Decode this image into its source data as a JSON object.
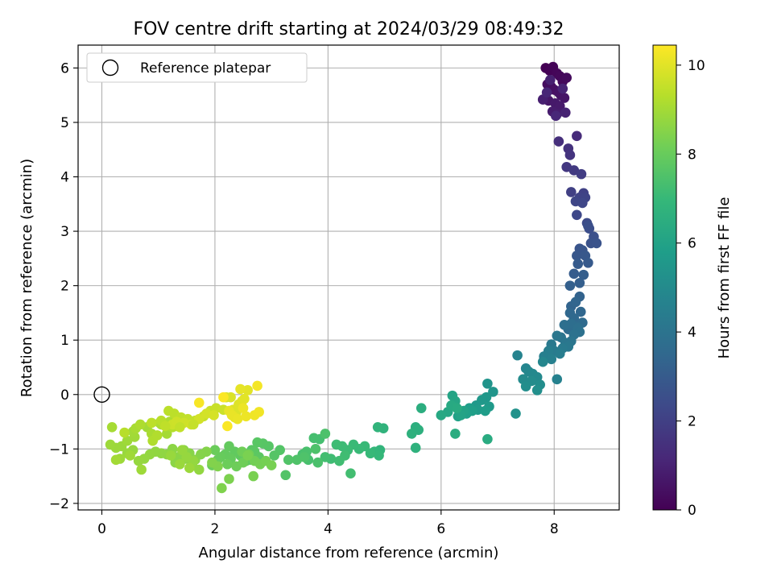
{
  "chart_data": {
    "type": "scatter",
    "title": "FOV centre drift starting at 2024/03/29 08:49:32",
    "xlabel": "Angular distance from reference (arcmin)",
    "ylabel": "Rotation from reference (arcmin)",
    "xlim": [
      -0.42,
      9.15
    ],
    "ylim": [
      -2.12,
      6.42
    ],
    "x_ticks": [
      0,
      2,
      4,
      6,
      8
    ],
    "y_ticks": [
      -2,
      -1,
      0,
      1,
      2,
      3,
      4,
      5,
      6
    ],
    "grid": true,
    "legend": {
      "placement": "top-left",
      "label": "Reference platepar"
    },
    "reference_point": {
      "x": 0,
      "y": 0
    },
    "colorbar": {
      "label": "Hours from first FF file",
      "range": [
        0,
        10.45
      ],
      "ticks": [
        0,
        2,
        4,
        6,
        8,
        10
      ],
      "colormap": "viridis",
      "colormap_stops": [
        "#440154",
        "#482878",
        "#3e4989",
        "#31688e",
        "#26828e",
        "#1f9e89",
        "#35b779",
        "#6ece58",
        "#b5de2b",
        "#fde725"
      ]
    },
    "point_color_mapping": "hours",
    "series": [
      {
        "x": [
          7.85,
          7.92,
          7.98,
          8.05,
          8.1,
          8.15,
          8.22,
          7.88,
          7.95,
          8.0,
          8.08,
          8.12,
          8.18,
          7.9,
          8.02,
          8.1,
          7.97,
          8.05,
          7.8,
          7.93,
          8.2,
          8.15,
          7.87,
          8.03
        ],
        "y": [
          6.0,
          5.95,
          6.02,
          5.9,
          5.85,
          5.75,
          5.82,
          5.7,
          5.65,
          5.6,
          5.55,
          5.5,
          5.45,
          5.4,
          5.35,
          5.3,
          5.2,
          5.15,
          5.42,
          5.78,
          5.18,
          5.62,
          5.55,
          5.12
        ],
        "hours": [
          0.0,
          0.05,
          0.1,
          0.15,
          0.2,
          0.25,
          0.3,
          0.35,
          0.4,
          0.45,
          0.5,
          0.55,
          0.6,
          0.65,
          0.7,
          0.75,
          0.8,
          0.85,
          0.9,
          0.95,
          1.0,
          1.05,
          1.1,
          1.15
        ]
      },
      {
        "x": [
          8.4,
          8.08,
          8.25,
          8.28,
          8.22,
          8.35,
          8.48,
          8.3,
          8.52,
          8.45,
          8.55,
          8.38,
          8.5,
          8.4,
          8.58,
          8.62,
          8.6,
          8.7,
          8.65,
          8.75,
          8.45,
          8.5,
          8.4,
          8.55,
          8.6,
          8.42,
          8.35,
          8.52,
          8.45,
          8.28
        ],
        "y": [
          4.75,
          4.65,
          4.52,
          4.4,
          4.18,
          4.12,
          4.05,
          3.72,
          3.7,
          3.62,
          3.62,
          3.55,
          3.52,
          3.3,
          3.15,
          3.05,
          3.1,
          2.9,
          2.78,
          2.78,
          2.68,
          2.65,
          2.55,
          2.55,
          2.42,
          2.4,
          2.22,
          2.2,
          2.05,
          2.0
        ],
        "hours": [
          1.3,
          1.4,
          1.5,
          1.6,
          1.7,
          1.8,
          1.9,
          2.0,
          2.05,
          2.1,
          2.15,
          2.2,
          2.25,
          2.3,
          2.4,
          2.5,
          2.55,
          2.6,
          2.65,
          2.7,
          2.75,
          2.8,
          2.85,
          2.9,
          2.95,
          3.0,
          3.05,
          3.1,
          3.15,
          3.2
        ]
      },
      {
        "x": [
          8.45,
          8.3,
          8.38,
          8.47,
          8.28,
          8.35,
          8.5,
          8.25,
          8.4,
          8.3,
          8.18,
          8.42,
          8.45,
          8.35,
          8.12,
          8.3,
          8.2,
          8.05,
          8.25,
          7.95,
          8.15,
          8.0,
          8.1,
          7.9,
          7.82,
          7.95,
          8.05
        ],
        "y": [
          1.8,
          1.62,
          1.7,
          1.52,
          1.5,
          1.4,
          1.32,
          1.2,
          1.25,
          1.3,
          1.28,
          1.22,
          1.15,
          1.1,
          1.05,
          0.98,
          0.95,
          1.08,
          0.88,
          0.92,
          0.85,
          0.8,
          0.75,
          0.8,
          0.7,
          0.65,
          0.28
        ],
        "hours": [
          3.3,
          3.35,
          3.4,
          3.45,
          3.5,
          3.55,
          3.6,
          3.65,
          3.7,
          3.75,
          3.8,
          3.85,
          3.9,
          3.95,
          4.0,
          4.05,
          4.1,
          4.15,
          4.2,
          4.25,
          4.3,
          4.35,
          4.4,
          4.45,
          4.5,
          4.55,
          4.6
        ]
      },
      {
        "x": [
          7.35,
          7.5,
          7.8,
          7.55,
          7.62,
          7.7,
          7.45,
          7.6,
          7.75,
          7.5,
          7.7,
          7.32,
          6.82,
          6.92,
          6.8,
          6.72,
          6.62,
          6.85,
          6.65,
          6.78,
          6.5,
          6.55,
          6.45,
          6.3,
          6.4,
          6.35,
          6.2,
          6.25,
          6.12,
          6.0,
          6.18,
          6.28,
          6.82,
          6.25
        ],
        "y": [
          0.72,
          0.48,
          0.6,
          0.42,
          0.38,
          0.32,
          0.28,
          0.25,
          0.18,
          0.15,
          0.08,
          -0.35,
          0.2,
          0.05,
          -0.05,
          -0.1,
          -0.2,
          -0.22,
          -0.28,
          -0.3,
          -0.25,
          -0.3,
          -0.35,
          -0.4,
          -0.3,
          -0.38,
          -0.02,
          -0.12,
          -0.32,
          -0.38,
          -0.2,
          -0.25,
          -0.82,
          -0.72
        ],
        "hours": [
          4.7,
          4.75,
          4.8,
          4.85,
          4.9,
          4.95,
          5.0,
          5.05,
          5.1,
          5.15,
          5.2,
          5.3,
          5.4,
          5.45,
          5.5,
          5.55,
          5.6,
          5.65,
          5.7,
          5.75,
          5.8,
          5.85,
          5.9,
          5.95,
          6.0,
          6.05,
          6.1,
          6.15,
          6.2,
          6.25,
          6.3,
          6.35,
          6.4,
          6.45
        ]
      },
      {
        "x": [
          5.65,
          5.55,
          5.6,
          5.48,
          5.55,
          4.98,
          4.88,
          4.92,
          4.82,
          4.9,
          4.75,
          4.65,
          4.55,
          4.45,
          4.35,
          4.25,
          4.15,
          4.05,
          4.3,
          4.2,
          4.4,
          3.95,
          3.85,
          3.75,
          3.65,
          3.55,
          3.62,
          3.82,
          3.95,
          3.78,
          3.58,
          3.45,
          3.3,
          3.25,
          3.15,
          3.05,
          2.95,
          2.85,
          2.75,
          2.65,
          2.7,
          2.78,
          2.62,
          2.55,
          2.45,
          2.35,
          2.25,
          2.18,
          2.28,
          2.1,
          2.05,
          1.95,
          2.0,
          2.22,
          2.38,
          2.5,
          2.48,
          2.6,
          2.7,
          2.8,
          2.9,
          3.0,
          2.68,
          2.58
        ],
        "y": [
          -0.25,
          -0.6,
          -0.65,
          -0.72,
          -0.98,
          -0.62,
          -0.6,
          -1.02,
          -1.05,
          -1.12,
          -1.08,
          -0.95,
          -1.0,
          -0.92,
          -1.02,
          -0.95,
          -0.92,
          -1.18,
          -1.12,
          -1.22,
          -1.45,
          -1.15,
          -0.82,
          -0.8,
          -1.2,
          -1.1,
          -1.05,
          -1.25,
          -0.72,
          -1.0,
          -1.15,
          -1.2,
          -1.2,
          -1.48,
          -1.02,
          -1.12,
          -0.95,
          -0.9,
          -0.88,
          -1.02,
          -1.05,
          -1.15,
          -1.2,
          -1.22,
          -1.12,
          -1.05,
          -0.95,
          -1.1,
          -1.18,
          -1.15,
          -1.2,
          -1.3,
          -1.02,
          -1.28,
          -1.32,
          -1.25,
          -1.05,
          -1.1,
          -1.22,
          -1.28,
          -1.22,
          -1.3,
          -1.5,
          -1.12
        ],
        "hours": [
          6.5,
          6.55,
          6.6,
          6.65,
          6.7,
          6.75,
          6.8,
          6.85,
          6.9,
          6.95,
          7.0,
          7.02,
          7.05,
          7.07,
          7.1,
          7.12,
          7.15,
          7.17,
          7.2,
          7.22,
          7.25,
          7.27,
          7.3,
          7.32,
          7.35,
          7.37,
          7.4,
          7.42,
          7.45,
          7.47,
          7.5,
          7.52,
          7.55,
          7.57,
          7.6,
          7.62,
          7.65,
          7.67,
          7.7,
          7.72,
          7.75,
          7.77,
          7.8,
          7.82,
          7.85,
          7.87,
          7.9,
          7.92,
          7.95,
          7.97,
          8.0,
          8.02,
          8.05,
          8.07,
          8.1,
          8.12,
          8.15,
          8.17,
          8.2,
          8.22,
          8.25,
          8.27,
          8.3,
          8.32
        ]
      },
      {
        "x": [
          2.25,
          2.12,
          2.05,
          1.95,
          1.85,
          1.75,
          1.65,
          1.55,
          1.45,
          1.35,
          1.25,
          1.15,
          1.05,
          0.95,
          0.85,
          0.75,
          0.65,
          0.55,
          0.45,
          0.35,
          0.25,
          0.15,
          0.45,
          0.58,
          0.8,
          1.02,
          1.15,
          1.3,
          1.48,
          1.6,
          1.72,
          1.62,
          1.5,
          1.42,
          1.22,
          1.38,
          1.55,
          0.32,
          0.7,
          0.5,
          0.55,
          0.25,
          0.18,
          0.6,
          0.88,
          1.05,
          1.2,
          0.68,
          0.9,
          0.98,
          1.1,
          1.25,
          1.32,
          0.4
        ],
        "y": [
          -1.55,
          -1.72,
          -1.32,
          -1.25,
          -1.05,
          -1.1,
          -1.2,
          -1.08,
          -1.02,
          -1.15,
          -1.0,
          -1.1,
          -1.08,
          -1.05,
          -1.1,
          -1.18,
          -1.22,
          -1.02,
          -1.08,
          -0.95,
          -0.98,
          -0.92,
          -0.85,
          -0.78,
          -0.6,
          -0.52,
          -0.72,
          -1.25,
          -1.18,
          -1.3,
          -1.38,
          -1.22,
          -1.15,
          -1.02,
          -1.12,
          -1.28,
          -1.35,
          -1.18,
          -1.38,
          -1.12,
          -0.68,
          -1.2,
          -0.6,
          -0.62,
          -0.72,
          -0.55,
          -0.5,
          -0.55,
          -0.85,
          -0.75,
          -0.55,
          -0.6,
          -0.58,
          -0.7
        ],
        "hours": [
          8.35,
          8.4,
          8.42,
          8.45,
          8.48,
          8.5,
          8.52,
          8.55,
          8.58,
          8.6,
          8.62,
          8.65,
          8.68,
          8.7,
          8.72,
          8.75,
          8.78,
          8.8,
          8.82,
          8.85,
          8.88,
          8.9,
          8.92,
          8.95,
          8.98,
          9.0,
          9.02,
          8.6,
          8.65,
          8.7,
          8.72,
          8.75,
          8.78,
          8.8,
          8.82,
          8.85,
          8.88,
          8.9,
          8.92,
          8.95,
          8.98,
          9.0,
          9.05,
          9.08,
          9.1,
          9.12,
          9.15,
          9.18,
          9.2,
          9.22,
          9.25,
          9.28,
          9.3,
          9.32
        ]
      },
      {
        "x": [
          1.05,
          1.18,
          1.28,
          1.4,
          1.52,
          1.65,
          1.8,
          1.92,
          2.02,
          2.15,
          1.25,
          1.32,
          1.45,
          1.58,
          1.72,
          1.85,
          1.98,
          0.88,
          1.12,
          1.38,
          1.62
        ],
        "y": [
          -0.48,
          -0.3,
          -0.35,
          -0.42,
          -0.45,
          -0.48,
          -0.4,
          -0.3,
          -0.25,
          -0.28,
          -0.55,
          -0.5,
          -0.52,
          -0.55,
          -0.45,
          -0.35,
          -0.38,
          -0.52,
          -0.58,
          -0.6,
          -0.55
        ],
        "hours": [
          9.35,
          9.38,
          9.4,
          9.45,
          9.5,
          9.52,
          9.55,
          9.58,
          9.6,
          9.62,
          9.65,
          9.68,
          9.7,
          9.72,
          9.75,
          9.78,
          9.8,
          9.4,
          9.45,
          9.5,
          9.55
        ]
      },
      {
        "x": [
          2.2,
          2.28,
          2.32,
          2.38,
          2.42,
          2.48,
          2.52,
          2.58,
          2.35,
          2.45,
          2.25,
          2.3,
          2.4,
          2.5,
          2.55,
          2.7,
          2.78,
          2.75,
          1.72,
          2.22,
          2.15
        ],
        "y": [
          -0.05,
          -0.05,
          -0.28,
          -0.32,
          -0.18,
          -0.12,
          -0.08,
          0.08,
          -0.42,
          0.1,
          -0.3,
          -0.38,
          -0.45,
          -0.25,
          -0.4,
          -0.38,
          -0.32,
          0.16,
          -0.15,
          -0.58,
          -0.05
        ],
        "hours": [
          9.85,
          9.88,
          9.9,
          9.92,
          9.95,
          9.98,
          10.0,
          10.02,
          10.05,
          10.08,
          10.1,
          10.12,
          10.15,
          10.18,
          10.2,
          10.22,
          10.25,
          10.3,
          10.35,
          10.4,
          10.42
        ]
      }
    ]
  }
}
